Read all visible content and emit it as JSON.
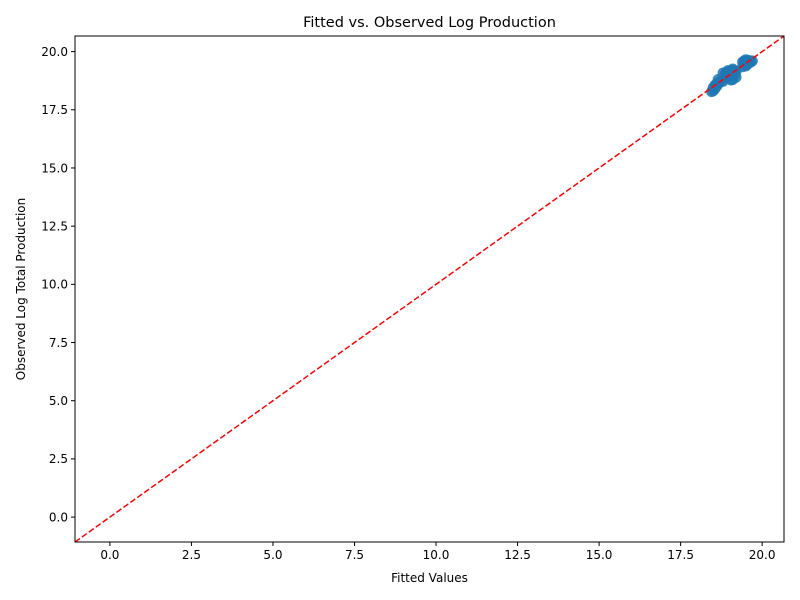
{
  "chart_data": {
    "type": "scatter",
    "title": "Fitted vs. Observed Log Production",
    "xlabel": "Fitted Values",
    "ylabel": "Observed Log Total Production",
    "xlim": [
      -1.07,
      20.67
    ],
    "ylim": [
      -1.07,
      20.67
    ],
    "xticks": [
      0.0,
      2.5,
      5.0,
      7.5,
      10.0,
      12.5,
      15.0,
      17.5,
      20.0
    ],
    "xtick_labels": [
      "0.0",
      "2.5",
      "5.0",
      "7.5",
      "10.0",
      "12.5",
      "15.0",
      "17.5",
      "20.0"
    ],
    "yticks": [
      0.0,
      2.5,
      5.0,
      7.5,
      10.0,
      12.5,
      15.0,
      17.5,
      20.0
    ],
    "ytick_labels": [
      "0.0",
      "2.5",
      "5.0",
      "7.5",
      "10.0",
      "12.5",
      "15.0",
      "17.5",
      "20.0"
    ],
    "grid": false,
    "series": [
      {
        "type": "scatter",
        "color": "#1f77b4",
        "points": [
          {
            "x": 18.45,
            "y": 18.28
          },
          {
            "x": 18.5,
            "y": 18.32
          },
          {
            "x": 18.55,
            "y": 18.4
          },
          {
            "x": 18.5,
            "y": 18.45
          },
          {
            "x": 18.6,
            "y": 18.5
          },
          {
            "x": 18.55,
            "y": 18.55
          },
          {
            "x": 18.65,
            "y": 18.6
          },
          {
            "x": 18.6,
            "y": 18.62
          },
          {
            "x": 18.7,
            "y": 18.7
          },
          {
            "x": 18.75,
            "y": 18.75
          },
          {
            "x": 18.65,
            "y": 18.8
          },
          {
            "x": 18.8,
            "y": 18.72
          },
          {
            "x": 18.85,
            "y": 18.85
          },
          {
            "x": 18.9,
            "y": 18.9
          },
          {
            "x": 18.85,
            "y": 19.0
          },
          {
            "x": 18.95,
            "y": 19.05
          },
          {
            "x": 18.9,
            "y": 19.1
          },
          {
            "x": 19.0,
            "y": 18.95
          },
          {
            "x": 19.05,
            "y": 19.0
          },
          {
            "x": 19.0,
            "y": 19.15
          },
          {
            "x": 19.1,
            "y": 19.2
          },
          {
            "x": 19.15,
            "y": 19.1
          },
          {
            "x": 19.05,
            "y": 18.78
          },
          {
            "x": 19.1,
            "y": 18.8
          },
          {
            "x": 19.2,
            "y": 18.9
          },
          {
            "x": 19.15,
            "y": 19.0
          },
          {
            "x": 19.2,
            "y": 19.15
          },
          {
            "x": 19.1,
            "y": 19.25
          },
          {
            "x": 18.95,
            "y": 19.18
          },
          {
            "x": 18.8,
            "y": 19.08
          },
          {
            "x": 19.4,
            "y": 19.35
          },
          {
            "x": 19.45,
            "y": 19.45
          },
          {
            "x": 19.5,
            "y": 19.5
          },
          {
            "x": 19.45,
            "y": 19.6
          },
          {
            "x": 19.5,
            "y": 19.65
          },
          {
            "x": 19.55,
            "y": 19.6
          },
          {
            "x": 19.6,
            "y": 19.62
          },
          {
            "x": 19.65,
            "y": 19.55
          },
          {
            "x": 19.7,
            "y": 19.6
          },
          {
            "x": 19.55,
            "y": 19.45
          },
          {
            "x": 19.4,
            "y": 19.55
          },
          {
            "x": 19.5,
            "y": 19.38
          }
        ]
      },
      {
        "type": "line",
        "style": "dashed",
        "color": "#ff0000",
        "x": [
          -1.07,
          20.67
        ],
        "y": [
          -1.07,
          20.67
        ]
      }
    ]
  }
}
